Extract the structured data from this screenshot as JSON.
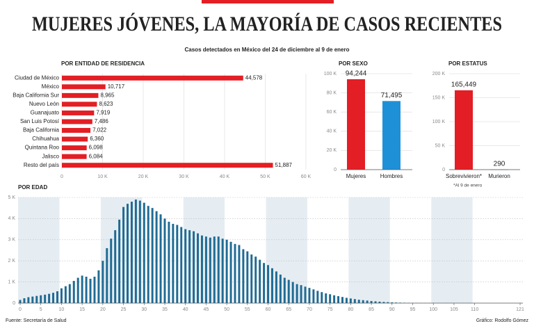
{
  "header": {
    "title": "MUJERES JÓVENES, LA MAYORÍA DE CASOS RECIENTES",
    "subtitle": "Casos detectados en México del 24 de diciembre al 9 de enero"
  },
  "chart_data": [
    {
      "type": "bar",
      "orientation": "horizontal",
      "title": "POR ENTIDAD DE RESIDENCIA",
      "categories": [
        "Ciudad de México",
        "México",
        "Baja California Sur",
        "Nuevo León",
        "Guanajuato",
        "San Luis Potosí",
        "Baja California",
        "Chihuahua",
        "Quintana Roo",
        "Jalisco",
        "Resto del país"
      ],
      "values": [
        44578,
        10717,
        8965,
        8623,
        7919,
        7486,
        7022,
        6360,
        6098,
        6084,
        51887
      ],
      "value_labels": [
        "44,578",
        "10,717",
        "8,965",
        "8,623",
        "7,919",
        "7,486",
        "7,022",
        "6,360",
        "6,098",
        "6,084",
        "51,887"
      ],
      "color": "#e31e24",
      "xlim": [
        0,
        60000
      ],
      "xticks": [
        0,
        {
          "value": 10000,
          "label": "10 K"
        },
        {
          "value": 20000,
          "label": "20 K"
        },
        {
          "value": 30000,
          "label": "30 K"
        },
        {
          "value": 40000,
          "label": "40 K"
        },
        {
          "value": 50000,
          "label": "50 K"
        },
        {
          "value": 60000,
          "label": "60 K"
        }
      ],
      "grid": true
    },
    {
      "type": "bar",
      "title": "POR SEXO",
      "categories": [
        "Mujeres",
        "Hombres"
      ],
      "values": [
        94244,
        71495
      ],
      "value_labels": [
        "94,244",
        "71,495"
      ],
      "colors": [
        "#e31e24",
        "#1e90d8"
      ],
      "ylim": [
        0,
        100000
      ],
      "yticks": [
        0,
        {
          "value": 20000,
          "label": "20 K"
        },
        {
          "value": 40000,
          "label": "40 K"
        },
        {
          "value": 60000,
          "label": "60 K"
        },
        {
          "value": 80000,
          "label": "80 K"
        },
        {
          "value": 100000,
          "label": "100 K"
        }
      ],
      "grid": true
    },
    {
      "type": "bar",
      "title": "POR ESTATUS",
      "categories": [
        "Sobrevivieron*",
        "Murieron"
      ],
      "values": [
        165449,
        290
      ],
      "value_labels": [
        "165,449",
        "290"
      ],
      "colors": [
        "#e31e24",
        "#1e90d8"
      ],
      "ylim": [
        0,
        200000
      ],
      "yticks": [
        0,
        {
          "value": 50000,
          "label": "50 K"
        },
        {
          "value": 100000,
          "label": "100 K"
        },
        {
          "value": 150000,
          "label": "150 K"
        },
        {
          "value": 200000,
          "label": "200 K"
        }
      ],
      "grid": true,
      "note": "*Al 9 de enero"
    },
    {
      "type": "bar",
      "title": "POR EDAD",
      "x": [
        0,
        1,
        2,
        3,
        4,
        5,
        6,
        7,
        8,
        9,
        10,
        11,
        12,
        13,
        14,
        15,
        16,
        17,
        18,
        19,
        20,
        21,
        22,
        23,
        24,
        25,
        26,
        27,
        28,
        29,
        30,
        31,
        32,
        33,
        34,
        35,
        36,
        37,
        38,
        39,
        40,
        41,
        42,
        43,
        44,
        45,
        46,
        47,
        48,
        49,
        50,
        51,
        52,
        53,
        54,
        55,
        56,
        57,
        58,
        59,
        60,
        61,
        62,
        63,
        64,
        65,
        66,
        67,
        68,
        69,
        70,
        71,
        72,
        73,
        74,
        75,
        76,
        77,
        78,
        79,
        80,
        81,
        82,
        83,
        84,
        85,
        86,
        87,
        88,
        89,
        90,
        91,
        92,
        93,
        94,
        95,
        96,
        97,
        98,
        99,
        100,
        101,
        102,
        103,
        104,
        105,
        106,
        107,
        108,
        109,
        110,
        111,
        112,
        113,
        114,
        115,
        116,
        117,
        118,
        119,
        120,
        121
      ],
      "values": [
        150,
        230,
        280,
        310,
        340,
        370,
        400,
        440,
        490,
        560,
        700,
        800,
        900,
        1050,
        1200,
        1300,
        1250,
        1150,
        1250,
        1550,
        2000,
        2600,
        3050,
        3450,
        3950,
        4550,
        4700,
        4800,
        4900,
        4850,
        4750,
        4600,
        4500,
        4350,
        4200,
        4000,
        3850,
        3750,
        3700,
        3600,
        3500,
        3450,
        3400,
        3300,
        3200,
        3150,
        3100,
        3150,
        3150,
        3050,
        3000,
        2900,
        2800,
        2750,
        2550,
        2450,
        2300,
        2200,
        2050,
        1900,
        1800,
        1650,
        1500,
        1350,
        1200,
        1100,
        1000,
        900,
        850,
        780,
        720,
        650,
        580,
        520,
        460,
        420,
        370,
        330,
        290,
        250,
        220,
        190,
        160,
        140,
        120,
        100,
        85,
        70,
        55,
        45,
        35,
        28,
        22,
        17,
        13,
        10,
        8,
        6,
        5,
        4,
        3,
        3,
        2,
        2,
        2,
        1,
        1,
        1,
        1,
        1,
        1,
        1,
        1,
        1,
        1,
        1,
        1,
        1,
        1,
        1,
        1,
        1
      ],
      "color": "#1f6b94",
      "xlim": [
        0,
        121
      ],
      "ylim": [
        0,
        5000
      ],
      "xticks": [
        0,
        5,
        10,
        15,
        20,
        25,
        30,
        35,
        40,
        45,
        50,
        55,
        60,
        65,
        70,
        75,
        80,
        85,
        90,
        95,
        100,
        105,
        110,
        121
      ],
      "yticks": [
        0,
        {
          "value": 1000,
          "label": "1 K"
        },
        {
          "value": 2000,
          "label": "2 K"
        },
        {
          "value": 3000,
          "label": "3 K"
        },
        {
          "value": 4000,
          "label": "4 K"
        },
        {
          "value": 5000,
          "label": "5 K"
        }
      ],
      "grid": true
    }
  ],
  "footer": {
    "source": "Fuente: Secretaría de Salud",
    "credit": "Gráfico: Rodolfo Gómez"
  }
}
